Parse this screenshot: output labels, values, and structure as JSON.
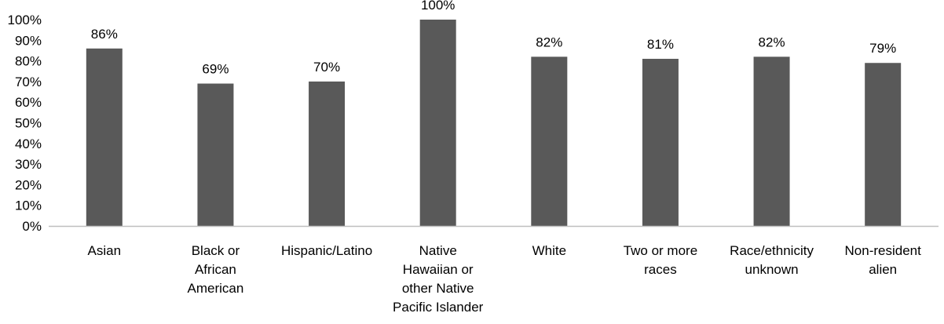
{
  "chart_data": {
    "type": "bar",
    "categories": [
      [
        "Asian"
      ],
      [
        "Black or",
        "African",
        "American"
      ],
      [
        "Hispanic/Latino"
      ],
      [
        "Native",
        "Hawaiian or",
        "other Native",
        "Pacific Islander"
      ],
      [
        "White"
      ],
      [
        "Two or more",
        "races"
      ],
      [
        "Race/ethnicity",
        "unknown"
      ],
      [
        "Non-resident",
        "alien"
      ]
    ],
    "values": [
      86,
      69,
      70,
      100,
      82,
      81,
      82,
      79
    ],
    "data_labels": [
      "86%",
      "69%",
      "70%",
      "100%",
      "82%",
      "81%",
      "82%",
      "79%"
    ],
    "y_ticks": [
      "0%",
      "10%",
      "20%",
      "30%",
      "40%",
      "50%",
      "60%",
      "70%",
      "80%",
      "90%",
      "100%"
    ],
    "ylim": [
      0,
      100
    ],
    "title": "",
    "xlabel": "",
    "ylabel": "",
    "grid": false,
    "legend": "none",
    "bar_color": "#595959",
    "axis_color": "#bfbfbf"
  }
}
